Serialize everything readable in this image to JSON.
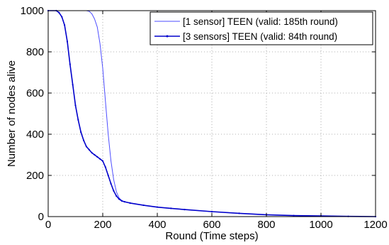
{
  "chart_data": {
    "type": "line",
    "xlabel": "Round (Time steps)",
    "ylabel": "Number of nodes alive",
    "xlim": [
      0,
      1200
    ],
    "ylim": [
      0,
      1000
    ],
    "xticks": [
      0,
      200,
      400,
      600,
      800,
      1000,
      1200
    ],
    "yticks": [
      0,
      200,
      400,
      600,
      800,
      1000
    ],
    "grid": true,
    "legend_position": "top-right",
    "series": [
      {
        "name": "[1 sensor] TEEN (valid: 185th round)",
        "color": "#4d4dff",
        "marker": "none",
        "x": [
          0,
          140,
          150,
          160,
          170,
          180,
          185,
          190,
          200,
          210,
          220,
          230,
          240,
          250,
          260,
          270,
          280,
          300,
          350,
          400,
          450,
          500,
          600,
          700,
          800,
          900,
          1000,
          1100,
          1200
        ],
        "y": [
          1000,
          1000,
          997,
          985,
          960,
          920,
          880,
          840,
          720,
          560,
          400,
          270,
          180,
          120,
          90,
          78,
          72,
          66,
          55,
          46,
          40,
          34,
          24,
          16,
          9,
          5,
          3,
          1,
          0
        ]
      },
      {
        "name": "[3 sensors] TEEN (valid: 84th round)",
        "color": "#0000cc",
        "marker": "dot",
        "x": [
          0,
          30,
          40,
          50,
          60,
          70,
          80,
          90,
          100,
          110,
          120,
          130,
          140,
          150,
          160,
          170,
          180,
          190,
          200,
          210,
          220,
          230,
          240,
          250,
          260,
          270,
          280,
          300,
          350,
          400,
          450,
          500,
          600,
          700,
          800,
          900,
          1000,
          1100,
          1200
        ],
        "y": [
          1000,
          1000,
          990,
          970,
          930,
          850,
          740,
          640,
          540,
          470,
          410,
          370,
          340,
          325,
          310,
          300,
          290,
          280,
          270,
          240,
          200,
          160,
          125,
          100,
          85,
          76,
          72,
          66,
          55,
          46,
          40,
          34,
          24,
          16,
          9,
          5,
          3,
          1,
          0
        ]
      }
    ]
  }
}
